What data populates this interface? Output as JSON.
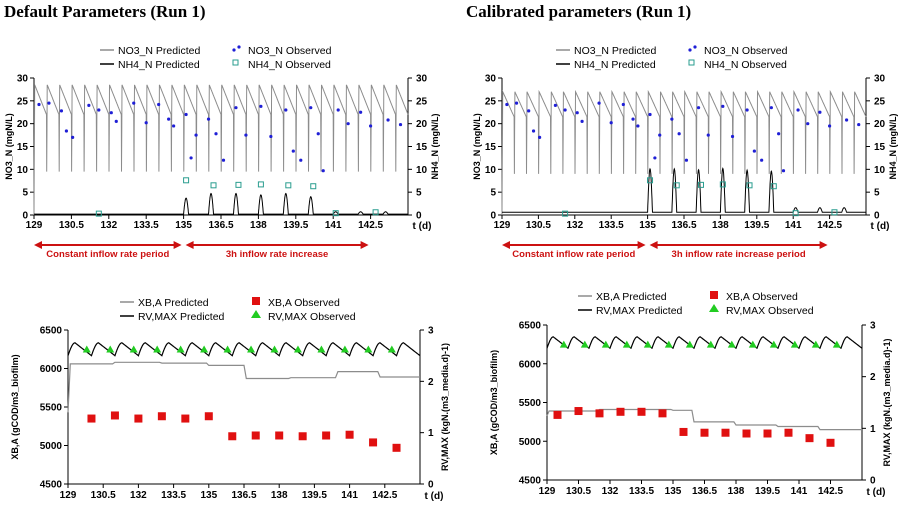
{
  "panels": [
    {
      "id": "default",
      "title": "Default Parameters (Run 1)"
    },
    {
      "id": "calibrated",
      "title": "Calibrated parameters (Run 1)"
    }
  ],
  "colors": {
    "predicted_light": "#8c8c8c",
    "predicted_dark": "#000000",
    "observed_nitrate": "#1f1fd6",
    "observed_ammonium": "#2a9d8f",
    "observed_xba": "#e01010",
    "observed_rvmax": "#22cc22",
    "annotation_red": "#cc1111"
  },
  "chart_data": [
    {
      "panel": "default",
      "type": "line",
      "xlabel": "t (d)",
      "ylabel_left": "NO3_N (mgN/L)",
      "ylabel_right": "NH4_N (mgN/L)",
      "xlim": [
        129,
        144
      ],
      "ylim": [
        0,
        30
      ],
      "y2lim": [
        0,
        30
      ],
      "xticks": [
        "129",
        "130.5",
        "132",
        "133.5",
        "135",
        "136.5",
        "138",
        "139.5",
        "141",
        "142.5"
      ],
      "yticks": [
        "0",
        "5",
        "10",
        "15",
        "20",
        "25",
        "30"
      ],
      "y2ticks": [
        "0",
        "5",
        "10",
        "15",
        "20",
        "25",
        "30"
      ],
      "legend": [
        {
          "label": "NO3_N Predicted",
          "style": "line-gray"
        },
        {
          "label": "NO3_N Observed",
          "style": "dot-blue"
        },
        {
          "label": "NH4_N Predicted",
          "style": "line-black"
        },
        {
          "label": "NH4_N Observed",
          "style": "square-open-teal"
        }
      ],
      "nitrate_predicted": {
        "base": 25,
        "dip_to": 0,
        "peak": 28.5,
        "period_d": 0.5
      },
      "ammonium_predicted": {
        "base": 0.2,
        "peaks_after_135": [
          3.5,
          4.5,
          4.5,
          4.2,
          4.5,
          3.8,
          0.5
        ]
      },
      "nitrate_observed": [
        [
          129.2,
          24.2
        ],
        [
          129.6,
          24.5
        ],
        [
          130.1,
          22.8
        ],
        [
          130.3,
          18.4
        ],
        [
          130.55,
          17.0
        ],
        [
          131.2,
          24.0
        ],
        [
          131.6,
          23.0
        ],
        [
          132.1,
          22.4
        ],
        [
          132.3,
          20.5
        ],
        [
          133.0,
          24.5
        ],
        [
          133.5,
          20.2
        ],
        [
          134.0,
          24.2
        ],
        [
          134.4,
          21.0
        ],
        [
          134.6,
          19.5
        ],
        [
          135.1,
          22.0
        ],
        [
          135.3,
          12.5
        ],
        [
          135.5,
          17.5
        ],
        [
          136.0,
          21.0
        ],
        [
          136.3,
          17.8
        ],
        [
          136.6,
          12.0
        ],
        [
          137.1,
          23.5
        ],
        [
          137.5,
          17.5
        ],
        [
          138.1,
          23.8
        ],
        [
          138.5,
          17.2
        ],
        [
          139.1,
          23.0
        ],
        [
          139.4,
          14.0
        ],
        [
          139.7,
          12.0
        ],
        [
          140.1,
          23.5
        ],
        [
          140.4,
          17.8
        ],
        [
          140.6,
          9.7
        ],
        [
          141.2,
          23.0
        ],
        [
          141.6,
          20.0
        ],
        [
          142.1,
          22.5
        ],
        [
          142.5,
          19.5
        ],
        [
          143.2,
          20.8
        ],
        [
          143.7,
          19.8
        ]
      ],
      "ammonium_observed": [
        [
          131.6,
          0.3
        ],
        [
          135.1,
          7.6
        ],
        [
          136.2,
          6.5
        ],
        [
          137.2,
          6.6
        ],
        [
          138.1,
          6.7
        ],
        [
          139.2,
          6.5
        ],
        [
          140.2,
          6.3
        ],
        [
          141.1,
          0.4
        ],
        [
          142.7,
          0.6
        ]
      ],
      "annotations": [
        {
          "text": "Constant inflow rate period",
          "from": 129,
          "to": 135
        },
        {
          "text": "3h inflow rate increase",
          "from": 135,
          "to": 142.5
        }
      ]
    },
    {
      "panel": "calibrated",
      "type": "line",
      "xlabel": "t (d)",
      "ylabel_left": "NO3_N (mgN/L)",
      "ylabel_right": "NH4_N (mgN/L)",
      "xlim": [
        129,
        144
      ],
      "ylim": [
        0,
        30
      ],
      "y2lim": [
        0,
        30
      ],
      "xticks": [
        "129",
        "130.5",
        "132",
        "133.5",
        "135",
        "136.5",
        "138",
        "139.5",
        "141",
        "142.5"
      ],
      "yticks": [
        "0",
        "5",
        "10",
        "15",
        "20",
        "25",
        "30"
      ],
      "y2ticks": [
        "0",
        "5",
        "10",
        "15",
        "20",
        "25",
        "30"
      ],
      "legend": [
        {
          "label": "NO3_N Predicted",
          "style": "line-gray"
        },
        {
          "label": "NO3_N Observed",
          "style": "dot-blue"
        },
        {
          "label": "NH4_N Predicted",
          "style": "line-black"
        },
        {
          "label": "NH4_N Observed",
          "style": "square-open-teal"
        }
      ],
      "nitrate_predicted": {
        "base": 24.5,
        "dip_to": 0,
        "peak": 27,
        "period_d": 0.5
      },
      "ammonium_predicted": {
        "base": 0.6,
        "peaks_after_135": [
          9.5,
          9.5,
          9.3,
          9.6,
          9.2,
          9.0,
          1.0
        ]
      },
      "nitrate_observed": [
        [
          129.2,
          24.2
        ],
        [
          129.6,
          24.5
        ],
        [
          130.1,
          22.8
        ],
        [
          130.3,
          18.4
        ],
        [
          130.55,
          17.0
        ],
        [
          131.2,
          24.0
        ],
        [
          131.6,
          23.0
        ],
        [
          132.1,
          22.4
        ],
        [
          132.3,
          20.5
        ],
        [
          133.0,
          24.5
        ],
        [
          133.5,
          20.2
        ],
        [
          134.0,
          24.2
        ],
        [
          134.4,
          21.0
        ],
        [
          134.6,
          19.5
        ],
        [
          135.1,
          22.0
        ],
        [
          135.3,
          12.5
        ],
        [
          135.5,
          17.5
        ],
        [
          136.0,
          21.0
        ],
        [
          136.3,
          17.8
        ],
        [
          136.6,
          12.0
        ],
        [
          137.1,
          23.5
        ],
        [
          137.5,
          17.5
        ],
        [
          138.1,
          23.8
        ],
        [
          138.5,
          17.2
        ],
        [
          139.1,
          23.0
        ],
        [
          139.4,
          14.0
        ],
        [
          139.7,
          12.0
        ],
        [
          140.1,
          23.5
        ],
        [
          140.4,
          17.8
        ],
        [
          140.6,
          9.7
        ],
        [
          141.2,
          23.0
        ],
        [
          141.6,
          20.0
        ],
        [
          142.1,
          22.5
        ],
        [
          142.5,
          19.5
        ],
        [
          143.2,
          20.8
        ],
        [
          143.7,
          19.8
        ]
      ],
      "ammonium_observed": [
        [
          131.6,
          0.3
        ],
        [
          135.1,
          7.6
        ],
        [
          136.2,
          6.5
        ],
        [
          137.2,
          6.6
        ],
        [
          138.1,
          6.7
        ],
        [
          139.2,
          6.5
        ],
        [
          140.2,
          6.3
        ],
        [
          141.1,
          0.4
        ],
        [
          142.7,
          0.6
        ]
      ],
      "annotations": [
        {
          "text": "Constant inflow rate period",
          "from": 129,
          "to": 135
        },
        {
          "text": "3h inflow rate increase period",
          "from": 135,
          "to": 142.5
        }
      ]
    },
    {
      "panel": "default",
      "type": "line",
      "xlabel": "t (d)",
      "ylabel_left": "XB,A (gCOD/m3_biofilm)",
      "ylabel_right": "RV,MAX (kgN.(m3_media.d)-1)",
      "xlim": [
        129,
        144
      ],
      "ylim": [
        4500,
        6500
      ],
      "y2lim": [
        0,
        3
      ],
      "xticks": [
        "129",
        "130.5",
        "132",
        "133.5",
        "135",
        "136.5",
        "138",
        "139.5",
        "141",
        "142.5"
      ],
      "yticks": [
        "4500",
        "5000",
        "5500",
        "6000",
        "6500"
      ],
      "y2ticks": [
        "0",
        "1",
        "2",
        "3"
      ],
      "legend": [
        {
          "label": "XB,A Predicted",
          "style": "line-gray"
        },
        {
          "label": "XB,A Observed",
          "style": "square-red"
        },
        {
          "label": "RV,MAX Predicted",
          "style": "line-black"
        },
        {
          "label": "RV,MAX Observed",
          "style": "triangle-green"
        }
      ],
      "xba_predicted_steps": [
        [
          129,
          5430
        ],
        [
          129.1,
          6060
        ],
        [
          130.9,
          6060
        ],
        [
          131.0,
          6080
        ],
        [
          132.9,
          6080
        ],
        [
          133.0,
          6070
        ],
        [
          134.9,
          6070
        ],
        [
          135.0,
          6040
        ],
        [
          136.5,
          6040
        ],
        [
          136.6,
          5870
        ],
        [
          138.4,
          5870
        ],
        [
          138.5,
          5880
        ],
        [
          140.4,
          5880
        ],
        [
          140.5,
          5960
        ],
        [
          142.2,
          5960
        ],
        [
          142.3,
          5890
        ],
        [
          144,
          5890
        ]
      ],
      "rvmax_predicted": {
        "base": 2.5,
        "amplitude": 0.25,
        "period_d": 1
      },
      "xba_observed": [
        [
          130.0,
          5350
        ],
        [
          131.0,
          5390
        ],
        [
          132.0,
          5350
        ],
        [
          133.0,
          5380
        ],
        [
          134.0,
          5350
        ],
        [
          135.0,
          5380
        ],
        [
          136.0,
          5120
        ],
        [
          137.0,
          5130
        ],
        [
          138.0,
          5130
        ],
        [
          139.0,
          5120
        ],
        [
          140.0,
          5130
        ],
        [
          141.0,
          5140
        ],
        [
          142.0,
          5040
        ],
        [
          143.0,
          4970
        ]
      ],
      "rvmax_observed": [
        [
          129.8,
          2.62
        ],
        [
          130.8,
          2.62
        ],
        [
          131.8,
          2.62
        ],
        [
          132.8,
          2.62
        ],
        [
          133.8,
          2.62
        ],
        [
          134.8,
          2.62
        ],
        [
          135.8,
          2.62
        ],
        [
          136.8,
          2.62
        ],
        [
          137.8,
          2.62
        ],
        [
          138.8,
          2.62
        ],
        [
          139.8,
          2.62
        ],
        [
          140.8,
          2.62
        ],
        [
          141.8,
          2.62
        ],
        [
          142.8,
          2.62
        ]
      ]
    },
    {
      "panel": "calibrated",
      "type": "line",
      "xlabel": "t (d)",
      "ylabel_left": "XB,A (gCOD/m3_biofilm)",
      "ylabel_right": "RV,MAX (kgN.(m3_media.d)-1)",
      "xlim": [
        129,
        144
      ],
      "ylim": [
        4500,
        6500
      ],
      "y2lim": [
        0,
        3
      ],
      "xticks": [
        "129",
        "130.5",
        "132",
        "133.5",
        "135",
        "136.5",
        "138",
        "139.5",
        "141",
        "142.5"
      ],
      "yticks": [
        "4500",
        "5000",
        "5500",
        "6000",
        "6500"
      ],
      "y2ticks": [
        "0",
        "1",
        "2",
        "3"
      ],
      "legend": [
        {
          "label": "XB,A Predicted",
          "style": "line-gray"
        },
        {
          "label": "XB,A Observed",
          "style": "square-red"
        },
        {
          "label": "RV,MAX Predicted",
          "style": "line-black"
        },
        {
          "label": "RV,MAX Observed",
          "style": "triangle-green"
        }
      ],
      "xba_predicted_steps": [
        [
          129,
          5330
        ],
        [
          129.1,
          5390
        ],
        [
          131.4,
          5390
        ],
        [
          131.5,
          5410
        ],
        [
          134.9,
          5410
        ],
        [
          135.0,
          5400
        ],
        [
          135.9,
          5400
        ],
        [
          136.0,
          5250
        ],
        [
          137.9,
          5250
        ],
        [
          138.0,
          5210
        ],
        [
          139.9,
          5210
        ],
        [
          140.0,
          5190
        ],
        [
          141.9,
          5190
        ],
        [
          142.0,
          5150
        ],
        [
          144,
          5150
        ]
      ],
      "rvmax_predicted": {
        "base": 2.55,
        "amplitude": 0.22,
        "period_d": 1
      },
      "xba_observed": [
        [
          129.5,
          5340
        ],
        [
          130.5,
          5390
        ],
        [
          131.5,
          5360
        ],
        [
          132.5,
          5380
        ],
        [
          133.5,
          5380
        ],
        [
          134.5,
          5360
        ],
        [
          135.5,
          5120
        ],
        [
          136.5,
          5110
        ],
        [
          137.5,
          5110
        ],
        [
          138.5,
          5100
        ],
        [
          139.5,
          5100
        ],
        [
          140.5,
          5110
        ],
        [
          141.5,
          5040
        ],
        [
          142.5,
          4980
        ]
      ],
      "rvmax_observed": [
        [
          129.8,
          2.62
        ],
        [
          130.8,
          2.62
        ],
        [
          131.8,
          2.62
        ],
        [
          132.8,
          2.62
        ],
        [
          133.8,
          2.62
        ],
        [
          134.8,
          2.62
        ],
        [
          135.8,
          2.62
        ],
        [
          136.8,
          2.62
        ],
        [
          137.8,
          2.62
        ],
        [
          138.8,
          2.62
        ],
        [
          139.8,
          2.62
        ],
        [
          140.8,
          2.62
        ],
        [
          141.8,
          2.62
        ],
        [
          142.8,
          2.62
        ]
      ]
    }
  ]
}
